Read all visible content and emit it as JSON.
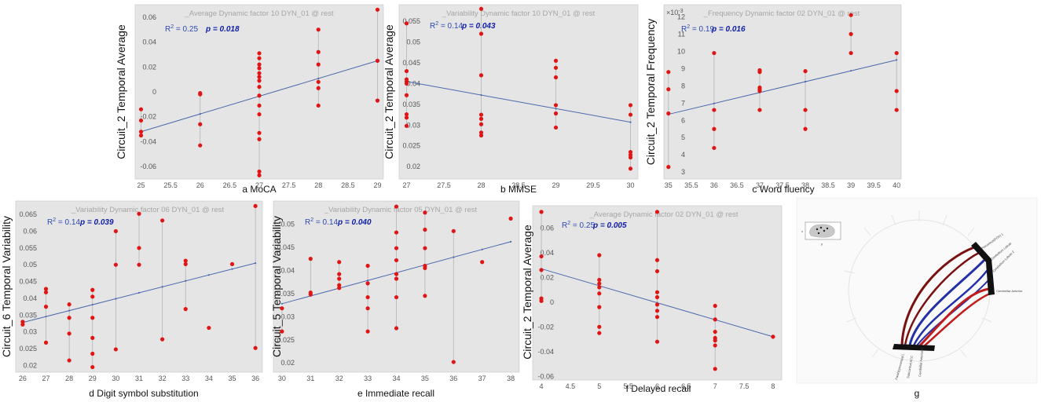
{
  "chart_data": [
    {
      "type": "scatter",
      "title": "_Average Dynamic factor 10 DYN_01 @ rest",
      "ylabel": "Circuit_2 Temporal Average",
      "caption": "a MoCA",
      "r2_label": "R",
      "r2_value": " = 0.25",
      "p_label": "p = 0.018",
      "x_ticks": [
        "25",
        "25.5",
        "26",
        "26.5",
        "27",
        "27.5",
        "28",
        "28.5",
        "29"
      ],
      "y_ticks": [
        "0.06",
        "0.04",
        "0.02",
        "0",
        "-0.02",
        "-0.04",
        "-0.06"
      ],
      "xlim": [
        24.9,
        29.1
      ],
      "ylim": [
        -0.07,
        0.07
      ],
      "fit": [
        [
          25,
          -0.032
        ],
        [
          29,
          0.025
        ]
      ],
      "points": [
        [
          25,
          -0.014
        ],
        [
          25,
          -0.023
        ],
        [
          25,
          -0.032
        ],
        [
          25,
          -0.035
        ],
        [
          26,
          -0.001
        ],
        [
          26,
          -0.002
        ],
        [
          26,
          -0.026
        ],
        [
          26,
          -0.043
        ],
        [
          27,
          0.031
        ],
        [
          27,
          0.027
        ],
        [
          27,
          0.022
        ],
        [
          27,
          0.019
        ],
        [
          27,
          0.015
        ],
        [
          27,
          0.012
        ],
        [
          27,
          0.009
        ],
        [
          27,
          0.004
        ],
        [
          27,
          -0.003
        ],
        [
          27,
          -0.011
        ],
        [
          27,
          -0.018
        ],
        [
          27,
          -0.033
        ],
        [
          27,
          -0.038
        ],
        [
          27,
          -0.064
        ],
        [
          27,
          -0.067
        ],
        [
          28,
          0.05
        ],
        [
          28,
          0.032
        ],
        [
          28,
          0.022
        ],
        [
          28,
          0.008
        ],
        [
          28,
          0.003
        ],
        [
          28,
          -0.011
        ],
        [
          29,
          0.066
        ],
        [
          29,
          0.025
        ],
        [
          29,
          -0.007
        ]
      ],
      "point_xs": [
        25,
        26,
        27,
        28,
        29
      ]
    },
    {
      "type": "scatter",
      "title": "_Variability Dynamic factor 10 DYN_01 @ rest",
      "ylabel": "Circuit_2 Temporal Average",
      "caption": "b MMSE",
      "r2_label": "R",
      "r2_value": " = 0.14",
      "p_label": "p = 0.043",
      "x_ticks": [
        "27",
        "27.5",
        "28",
        "28.5",
        "29",
        "29.5",
        "30"
      ],
      "y_ticks": [
        "0.055",
        "0.05",
        "0.045",
        "0.04",
        "0.035",
        "0.03",
        "0.025",
        "0.02"
      ],
      "xlim": [
        26.9,
        30.1
      ],
      "ylim": [
        0.017,
        0.059
      ],
      "fit": [
        [
          27,
          0.0405
        ],
        [
          30,
          0.0307
        ]
      ],
      "points": [
        [
          27,
          0.0545
        ],
        [
          27,
          0.043
        ],
        [
          27,
          0.041
        ],
        [
          27,
          0.0405
        ],
        [
          27,
          0.04
        ],
        [
          27,
          0.0372
        ],
        [
          27,
          0.0326
        ],
        [
          27,
          0.0318
        ],
        [
          27,
          0.0298
        ],
        [
          28,
          0.058
        ],
        [
          28,
          0.052
        ],
        [
          28,
          0.042
        ],
        [
          28,
          0.0325
        ],
        [
          28,
          0.0315
        ],
        [
          28,
          0.0302
        ],
        [
          28,
          0.0282
        ],
        [
          28,
          0.0275
        ],
        [
          29,
          0.0455
        ],
        [
          29,
          0.0438
        ],
        [
          29,
          0.0415
        ],
        [
          29,
          0.0348
        ],
        [
          29,
          0.0328
        ],
        [
          29,
          0.0294
        ],
        [
          30,
          0.0348
        ],
        [
          30,
          0.0325
        ],
        [
          30,
          0.0235
        ],
        [
          30,
          0.0228
        ],
        [
          30,
          0.0222
        ],
        [
          30,
          0.0195
        ]
      ],
      "point_xs": [
        27,
        28,
        29,
        30
      ]
    },
    {
      "type": "scatter",
      "title": "_Frequency Dynamic factor 02 DYN_01 @ rest",
      "ylabel": "Circuit_2 Temporal Frequency",
      "caption": "c Word fluency",
      "r2_label": "R",
      "r2_value": " = 0.19",
      "p_label": "p = 0.016",
      "exponent": "×10",
      "exponent_power": "-3",
      "x_ticks": [
        "35",
        "35.5",
        "36",
        "36.5",
        "37",
        "37.5",
        "38",
        "38.5",
        "39",
        "39.5",
        "40"
      ],
      "y_ticks": [
        "12",
        "11",
        "10",
        "9",
        "8",
        "7",
        "6",
        "5",
        "4",
        "3"
      ],
      "xlim": [
        34.9,
        40.1
      ],
      "ylim": [
        2.6,
        12.7
      ],
      "fit": [
        [
          35,
          6.35
        ],
        [
          40,
          9.5
        ]
      ],
      "points": [
        [
          35,
          8.8
        ],
        [
          35,
          7.8
        ],
        [
          35,
          6.4
        ],
        [
          35,
          3.3
        ],
        [
          36,
          9.9
        ],
        [
          36,
          6.6
        ],
        [
          36,
          5.5
        ],
        [
          36,
          4.4
        ],
        [
          37,
          8.9
        ],
        [
          37,
          8.8
        ],
        [
          37,
          7.9
        ],
        [
          37,
          7.8
        ],
        [
          37,
          7.7
        ],
        [
          37,
          6.6
        ],
        [
          38,
          8.85
        ],
        [
          38,
          6.6
        ],
        [
          38,
          5.5
        ],
        [
          39,
          12.1
        ],
        [
          39,
          11.0
        ],
        [
          39,
          9.9
        ],
        [
          40,
          9.9
        ],
        [
          40,
          7.7
        ],
        [
          40,
          6.6
        ]
      ],
      "point_xs": [
        35,
        36,
        37,
        38,
        39,
        40
      ]
    },
    {
      "type": "scatter",
      "title": "_Variability Dynamic factor 06 DYN_01 @ rest",
      "ylabel": "Circuit_6 Temporal Variability",
      "caption": "d Digit symbol substitution",
      "r2_label": "R",
      "r2_value": " = 0.14",
      "p_label": "p = 0.039",
      "x_ticks": [
        "26",
        "27",
        "28",
        "29",
        "30",
        "31",
        "32",
        "33",
        "34",
        "35",
        "36"
      ],
      "y_ticks": [
        "0.065",
        "0.06",
        "0.055",
        "0.05",
        "0.045",
        "0.04",
        "0.035",
        "0.03",
        "0.025",
        "0.02"
      ],
      "xlim": [
        25.7,
        36.3
      ],
      "ylim": [
        0.018,
        0.069
      ],
      "fit": [
        [
          26,
          0.0328
        ],
        [
          36,
          0.0505
        ]
      ],
      "points": [
        [
          26,
          0.033
        ],
        [
          26,
          0.0322
        ],
        [
          27,
          0.0428
        ],
        [
          27,
          0.0418
        ],
        [
          27,
          0.0375
        ],
        [
          27,
          0.0268
        ],
        [
          28,
          0.0382
        ],
        [
          28,
          0.0342
        ],
        [
          28,
          0.0295
        ],
        [
          28,
          0.0215
        ],
        [
          29,
          0.0425
        ],
        [
          29,
          0.0405
        ],
        [
          29,
          0.0342
        ],
        [
          29,
          0.0282
        ],
        [
          29,
          0.0235
        ],
        [
          29,
          0.0195
        ],
        [
          30,
          0.06
        ],
        [
          30,
          0.05
        ],
        [
          30,
          0.0248
        ],
        [
          31,
          0.0652
        ],
        [
          31,
          0.055
        ],
        [
          31,
          0.05
        ],
        [
          32,
          0.0632
        ],
        [
          32,
          0.0278
        ],
        [
          33,
          0.0512
        ],
        [
          33,
          0.0502
        ],
        [
          33,
          0.0368
        ],
        [
          34,
          0.0312
        ],
        [
          35,
          0.0502
        ],
        [
          36,
          0.0675
        ],
        [
          36,
          0.0252
        ]
      ],
      "point_xs": [
        26,
        27,
        28,
        29,
        30,
        31,
        32,
        33,
        34,
        35,
        36
      ]
    },
    {
      "type": "scatter",
      "title": "_Variability Dynamic factor 05 DYN_01 @ rest",
      "ylabel": "Circuit_5 Temporal Variability",
      "caption": "e Immediate recall",
      "r2_label": "R",
      "r2_value": " = 0.14",
      "p_label": "p = 0.040",
      "x_ticks": [
        "30",
        "31",
        "32",
        "33",
        "34",
        "35",
        "36",
        "37",
        "38"
      ],
      "y_ticks": [
        "0.05",
        "0.045",
        "0.04",
        "0.035",
        "0.03",
        "0.025",
        "0.02"
      ],
      "xlim": [
        29.7,
        38.3
      ],
      "ylim": [
        0.018,
        0.055
      ],
      "fit": [
        [
          30,
          0.0328
        ],
        [
          38,
          0.0462
        ]
      ],
      "points": [
        [
          30,
          0.0318
        ],
        [
          30,
          0.0268
        ],
        [
          31,
          0.0425
        ],
        [
          31,
          0.0352
        ],
        [
          31,
          0.0348
        ],
        [
          32,
          0.0418
        ],
        [
          32,
          0.0392
        ],
        [
          32,
          0.0382
        ],
        [
          32,
          0.0368
        ],
        [
          32,
          0.0362
        ],
        [
          33,
          0.041
        ],
        [
          33,
          0.0372
        ],
        [
          33,
          0.0342
        ],
        [
          33,
          0.0318
        ],
        [
          33,
          0.0268
        ],
        [
          34,
          0.0538
        ],
        [
          34,
          0.0482
        ],
        [
          34,
          0.0448
        ],
        [
          34,
          0.0422
        ],
        [
          34,
          0.0392
        ],
        [
          34,
          0.0382
        ],
        [
          34,
          0.0342
        ],
        [
          34,
          0.0275
        ],
        [
          35,
          0.0525
        ],
        [
          35,
          0.0488
        ],
        [
          35,
          0.0448
        ],
        [
          35,
          0.041
        ],
        [
          35,
          0.0405
        ],
        [
          35,
          0.0345
        ],
        [
          36,
          0.0485
        ],
        [
          36,
          0.0202
        ],
        [
          37,
          0.0418
        ],
        [
          38,
          0.0512
        ]
      ],
      "point_xs": [
        30,
        31,
        32,
        33,
        34,
        35,
        36,
        37,
        38
      ]
    },
    {
      "type": "scatter",
      "title": "_Average Dynamic factor 02 DYN_01 @ rest",
      "ylabel": "Circuit_2 Temporal Average",
      "caption": "f Delayed recall",
      "r2_label": "R",
      "r2_value": " = 0.25",
      "p_label": "p = 0.005",
      "x_ticks": [
        "4",
        "4.5",
        "5",
        "5.5",
        "6",
        "6.5",
        "7",
        "7.5",
        "8"
      ],
      "y_ticks": [
        "0.06",
        "0.04",
        "0.02",
        "0",
        "-0.02",
        "-0.04",
        "-0.06"
      ],
      "xlim": [
        3.85,
        8.15
      ],
      "ylim": [
        -0.063,
        0.078
      ],
      "fit": [
        [
          4,
          0.027
        ],
        [
          8,
          -0.028
        ]
      ],
      "points": [
        [
          4,
          0.073
        ],
        [
          4,
          0.037
        ],
        [
          4,
          0.026
        ],
        [
          4,
          0.003
        ],
        [
          4,
          0.001
        ],
        [
          5,
          0.038
        ],
        [
          5,
          0.018
        ],
        [
          5,
          0.015
        ],
        [
          5,
          0.012
        ],
        [
          5,
          0.007
        ],
        [
          5,
          -0.004
        ],
        [
          5,
          -0.02
        ],
        [
          5,
          -0.025
        ],
        [
          6,
          0.073
        ],
        [
          6,
          0.034
        ],
        [
          6,
          0.025
        ],
        [
          6,
          0.008
        ],
        [
          6,
          0.004
        ],
        [
          6,
          -0.002
        ],
        [
          6,
          -0.007
        ],
        [
          6,
          -0.012
        ],
        [
          6,
          -0.032
        ],
        [
          7,
          -0.003
        ],
        [
          7,
          -0.014
        ],
        [
          7,
          -0.024
        ],
        [
          7,
          -0.029
        ],
        [
          7,
          -0.031
        ],
        [
          7,
          -0.035
        ],
        [
          7,
          -0.054
        ],
        [
          8,
          -0.028
        ]
      ],
      "point_xs": [
        4,
        5,
        6,
        7,
        8
      ]
    }
  ],
  "panel_g": {
    "caption": "g",
    "inset_labels": [
      "x",
      "y"
    ],
    "node_labels": [
      "Precuneus(FOV) 1",
      "Cerebellum Lobule",
      "Cerebellum Lobule 2",
      "Cerebellar Anterior",
      "Parahippocampal L",
      "Subcortical ACC",
      "Cerebellar Anterior 2"
    ]
  },
  "colors": {
    "axes_bg": "#e5e5e5",
    "point": "#e01616",
    "fit_line": "#4a6aad",
    "stem": "#b4b4b4",
    "chord_dark": "#7a1010",
    "chord_red": "#c01e1e",
    "chord_blue": "#2230a8"
  }
}
